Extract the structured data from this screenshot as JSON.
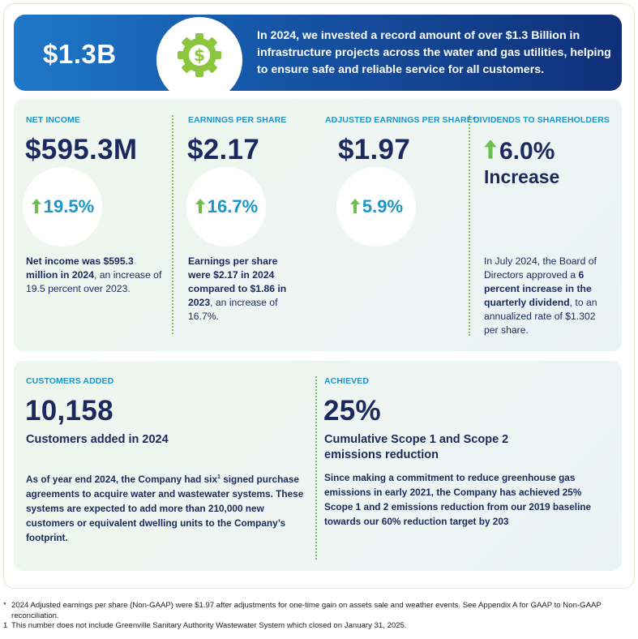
{
  "banner": {
    "amount": "$1.3B",
    "icon": "gear-dollar-icon",
    "text": "In 2024, we invested a record amount of over $1.3 Billion in infrastructure projects across the water and gas utilities, helping to ensure safe and reliable service for all customers."
  },
  "metrics": {
    "net_income": {
      "label": "NET INCOME",
      "value": "$595.3M",
      "change": "19.5%",
      "desc_bold": "Net income was $595.3 million in 2024",
      "desc_rest": ", an increase of 19.5 percent over 2023."
    },
    "eps": {
      "label": "EARNINGS PER SHARE",
      "value": "$2.17",
      "change": "16.7%",
      "desc_bold": "Earnings per share were $2.17 in 2024 compared to $1.86 in 2023",
      "desc_rest": ", an increase of 16.7%."
    },
    "adjusted_eps": {
      "label": "ADJUSTED EARNINGS PER SHARE*",
      "value": "$1.97",
      "change": "5.9%"
    },
    "dividends": {
      "label": "DIVIDENDS TO SHAREHOLDERS",
      "value": "6.0%",
      "sub": "Increase",
      "desc_pre": "In July 2024, the Board of Directors approved a ",
      "desc_bold": "6 percent increase in the quarterly dividend",
      "desc_rest": ", to an annualized rate of $1.302 per share."
    }
  },
  "customers": {
    "label": "CUSTOMERS ADDED",
    "value": "10,158",
    "subtitle": "Customers added in 2024",
    "desc_a": "As of year end 2024, the Company had six",
    "desc_sup": "1",
    "desc_b": " signed purchase agreements to acquire water and wastewater systems. These systems are expected to add more than 210,000 new customers or equivalent dwelling units to the Company’s footprint."
  },
  "achieved": {
    "label": "ACHIEVED",
    "value": "25%",
    "subtitle": "Cumulative Scope 1 and Scope 2 emissions reduction",
    "desc": "Since making a commitment to reduce greenhouse gas emissions in early 2021, the Company has achieved 25% Scope 1 and 2 emissions reduction from our 2019 baseline towards our 60% reduction target by 203"
  },
  "footnotes": [
    {
      "mark": "*",
      "text": "2024 Adjusted earnings per share (Non-GAAP) were $1.97 after adjustments for one-time gain on assets sale and weather events. See Appendix A for GAAP to Non-GAAP reconciliation."
    },
    {
      "mark": "1",
      "text": "This number does not include Greenville Sanitary Authority Wastewater System which closed on January 31, 2025."
    }
  ],
  "colors": {
    "navy": "#1a2a5e",
    "accent_blue": "#1a96c8",
    "arrow_green": "#6cbf4a",
    "gear_green": "#8cc63f"
  }
}
